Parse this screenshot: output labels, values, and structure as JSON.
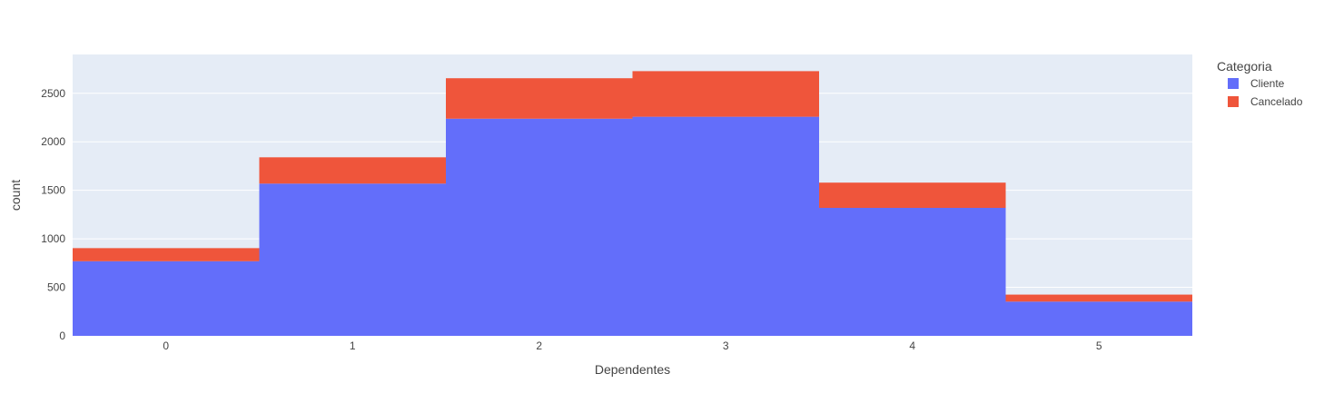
{
  "chart_data": {
    "type": "bar",
    "barmode": "stack",
    "categories": [
      "0",
      "1",
      "2",
      "3",
      "4",
      "5"
    ],
    "series": [
      {
        "name": "Cliente",
        "color": "#636efa",
        "values": [
          769,
          1569,
          2238,
          2258,
          1319,
          353
        ]
      },
      {
        "name": "Cancelado",
        "color": "#ef553b",
        "values": [
          135,
          271,
          417,
          470,
          260,
          72
        ]
      }
    ],
    "xlabel": "Dependentes",
    "ylabel": "count",
    "ylim": [
      0,
      2900
    ],
    "yticks": [
      0,
      500,
      1000,
      1500,
      2000,
      2500
    ],
    "legend": {
      "title": "Categoria",
      "placement": "right"
    },
    "grid": true,
    "plot_background": "#e5ecf6"
  }
}
